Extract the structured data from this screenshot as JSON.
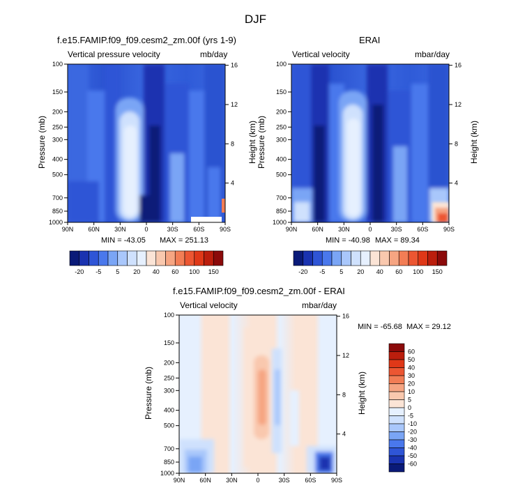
{
  "main_title": "DJF",
  "colors": {
    "blue_scale": [
      "#0a1a78",
      "#1a33b0",
      "#2f55d6",
      "#4a78ec",
      "#7aa5f5",
      "#a9c7fb",
      "#cfe1fd",
      "#e6f0fe"
    ],
    "red_scale": [
      "#fbe4d6",
      "#f9c8ae",
      "#f6a582",
      "#f27d55",
      "#ec5632",
      "#df3818",
      "#bb1e0d",
      "#8b0a0a"
    ]
  },
  "chart_data": [
    {
      "type": "heatmap",
      "title": "f.e15.FAMIP.f09_f09.cesm2_zm.00f (yrs 1-9)",
      "left_label": "Vertical pressure velocity",
      "right_label": "mb/day",
      "ylabel": "Pressure (mb)",
      "y2label": "Height (km)",
      "x_ticks": [
        "90N",
        "60N",
        "30N",
        "0",
        "30S",
        "60S",
        "90S"
      ],
      "y_ticks": [
        "100",
        "150",
        "200",
        "250",
        "300",
        "400",
        "500",
        "700",
        "850",
        "1000"
      ],
      "y2_ticks": [
        "16",
        "12",
        "8",
        "4"
      ],
      "min_label": "MIN = -43.05",
      "max_label": "MAX = 251.13",
      "colorbar_labels": [
        "-20",
        "-5",
        "5",
        "20",
        "40",
        "60",
        "100",
        "150"
      ]
    },
    {
      "type": "heatmap",
      "title": "ERAI",
      "left_label": "Vertical velocity",
      "right_label": "mbar/day",
      "ylabel": "Pressure (mb)",
      "y2label": "Height (km)",
      "x_ticks": [
        "90N",
        "60N",
        "30N",
        "0",
        "30S",
        "60S",
        "90S"
      ],
      "y_ticks": [
        "100",
        "150",
        "200",
        "250",
        "300",
        "400",
        "500",
        "700",
        "850",
        "1000"
      ],
      "y2_ticks": [
        "16",
        "12",
        "8",
        "4"
      ],
      "min_label": "MIN = -40.98",
      "max_label": "MAX = 89.34",
      "colorbar_labels": [
        "-20",
        "-5",
        "5",
        "20",
        "40",
        "60",
        "100",
        "150"
      ]
    },
    {
      "type": "heatmap",
      "title": "f.e15.FAMIP.f09_f09.cesm2_zm.00f - ERAI",
      "left_label": "Vertical velocity",
      "right_label": "mbar/day",
      "ylabel": "Pressure (mb)",
      "y2label": "Height (km)",
      "x_ticks": [
        "90N",
        "60N",
        "30N",
        "0",
        "30S",
        "60S",
        "90S"
      ],
      "y_ticks": [
        "100",
        "150",
        "200",
        "250",
        "300",
        "400",
        "500",
        "700",
        "850",
        "1000"
      ],
      "y2_ticks": [
        "16",
        "12",
        "8",
        "4"
      ],
      "min_label": "MIN = -65.68",
      "max_label": "MAX = 29.12",
      "colorbar_labels": [
        "60",
        "50",
        "40",
        "30",
        "20",
        "10",
        "5",
        "0",
        "-5",
        "-10",
        "-20",
        "-30",
        "-40",
        "-50",
        "-60"
      ]
    }
  ]
}
